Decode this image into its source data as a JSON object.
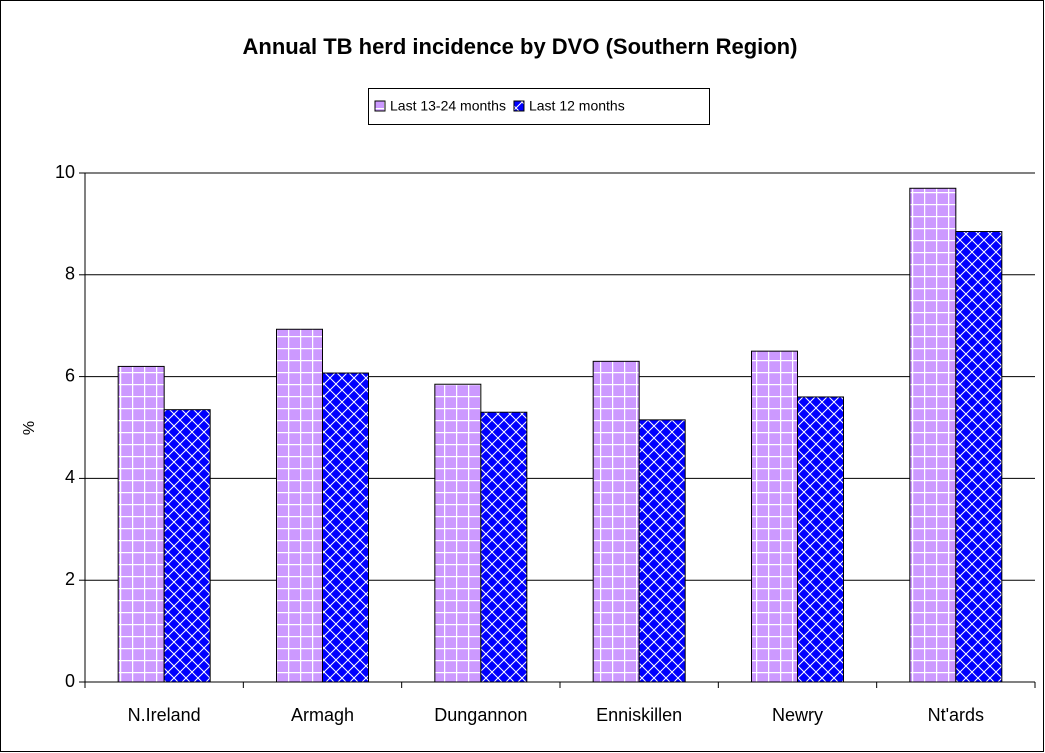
{
  "chart_data": {
    "type": "bar",
    "title": "Annual TB herd incidence by DVO (Southern Region)",
    "y_label": "%",
    "categories": [
      "N.Ireland",
      "Armagh",
      "Dungannon",
      "Enniskillen",
      "Newry",
      "Nt'ards"
    ],
    "series": [
      {
        "name": "Last 13-24 months",
        "color": "#cc99ff",
        "values": [
          6.2,
          6.93,
          5.85,
          6.3,
          6.5,
          9.7
        ]
      },
      {
        "name": "Last 12 months",
        "color": "#0000ff",
        "values": [
          5.35,
          6.07,
          5.3,
          5.15,
          5.6,
          8.85
        ]
      }
    ],
    "ylim": [
      0,
      10
    ],
    "yticks": [
      0,
      2,
      4,
      6,
      8,
      10
    ],
    "grid": true
  }
}
